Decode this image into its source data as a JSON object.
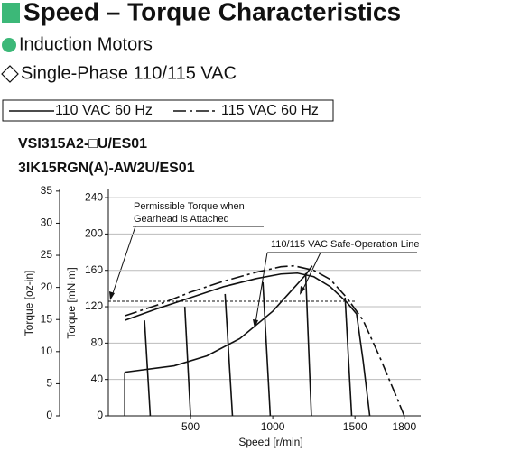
{
  "chart_data": {
    "type": "line",
    "title": "Speed – Torque Characteristics",
    "subtitles": [
      "Induction Motors",
      "Single-Phase 110/115 VAC"
    ],
    "models": [
      "VSI315A2-□U/ES01",
      "3IK15RGN(A)-AW2U/ES01"
    ],
    "x_label": "Speed [r/min]",
    "y_label": "Torque [mN·m]",
    "y2_label": "Torque [oz-in]",
    "xlim": [
      0,
      1900
    ],
    "xticks": [
      500,
      1000,
      1500,
      1800
    ],
    "ylim": [
      0,
      250
    ],
    "yticks": [
      0,
      40,
      80,
      120,
      160,
      200,
      240
    ],
    "y2lim": [
      0,
      35.4
    ],
    "y2ticks": [
      0,
      5,
      10,
      15,
      20,
      25,
      30,
      35
    ],
    "grid": true,
    "series": [
      {
        "name": "110 VAC 60 Hz",
        "color": "#111111",
        "dash": "solid",
        "x": [
          100,
          300,
          500,
          700,
          900,
          1050,
          1150,
          1250,
          1350,
          1450,
          1510,
          1550,
          1590
        ],
        "values": [
          105,
          118,
          130,
          142,
          151,
          156,
          157,
          153,
          142,
          125,
          112,
          60,
          0
        ]
      },
      {
        "name": "115 VAC 60 Hz",
        "color": "#111111",
        "dash": "dashdot",
        "x": [
          100,
          300,
          500,
          700,
          900,
          1050,
          1130,
          1250,
          1350,
          1450,
          1550,
          1650,
          1750,
          1800
        ],
        "values": [
          110,
          122,
          136,
          148,
          158,
          164,
          165,
          160,
          150,
          130,
          105,
          65,
          22,
          0
        ]
      }
    ],
    "safe_operation_line": {
      "label": "110/115 VAC Safe-Operation Line",
      "x": [
        100,
        400,
        600,
        800,
        1000,
        1100,
        1200,
        1240
      ],
      "values": [
        48,
        55,
        66,
        85,
        115,
        135,
        155,
        165
      ]
    },
    "permissible_torque": {
      "label": [
        "Permissible Torque when",
        "Gearhead is Attached"
      ],
      "value": 126
    },
    "load_lines": [
      {
        "x": [
          100,
          100
        ],
        "values": [
          48,
          0
        ]
      },
      {
        "x": [
          220,
          255
        ],
        "values": [
          105,
          0
        ]
      },
      {
        "x": [
          465,
          500
        ],
        "values": [
          120,
          0
        ]
      },
      {
        "x": [
          710,
          755
        ],
        "values": [
          134,
          0
        ]
      },
      {
        "x": [
          940,
          985
        ],
        "values": [
          147,
          0
        ]
      },
      {
        "x": [
          1200,
          1235
        ],
        "values": [
          157,
          0
        ]
      },
      {
        "x": [
          1440,
          1480
        ],
        "values": [
          130,
          0
        ]
      },
      {
        "x": [
          1590,
          1590
        ],
        "values": [
          0,
          0
        ]
      }
    ]
  }
}
